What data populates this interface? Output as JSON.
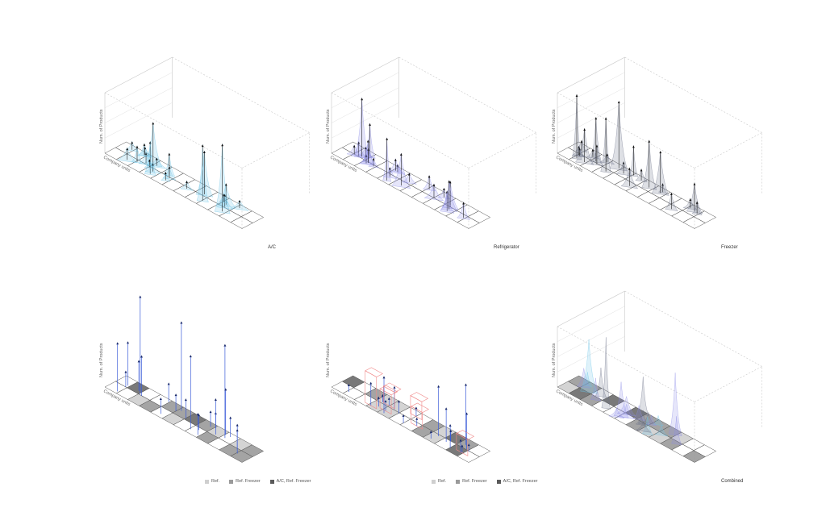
{
  "axis_labels": {
    "y": "Num. of Products",
    "x": "Company units"
  },
  "panels": [
    {
      "caption": "A/C",
      "style": "peaks",
      "colors": [
        "#6ec6e8"
      ]
    },
    {
      "caption": "Refrigerator",
      "style": "peaks",
      "colors": [
        "#8c8ce8"
      ]
    },
    {
      "caption": "Freezer",
      "style": "peaks",
      "colors": [
        "#6a7087"
      ]
    },
    {
      "caption": "",
      "style": "bars",
      "colors": [
        "#3a5bd8",
        "#2a2a5a"
      ]
    },
    {
      "caption": "",
      "style": "boxes",
      "colors": [
        "#3a5bd8",
        "#f08a8a"
      ]
    },
    {
      "caption": "Combined",
      "style": "peaks",
      "colors": [
        "#6ec6e8",
        "#8c8ce8",
        "#6a7087"
      ]
    }
  ],
  "legend": [
    {
      "label": "Ref.",
      "color": "#cfcfcf"
    },
    {
      "label": "Ref. Freezer",
      "color": "#9a9a9a"
    },
    {
      "label": "A/C, Ref. Freezer",
      "color": "#5a5a5a"
    }
  ]
}
